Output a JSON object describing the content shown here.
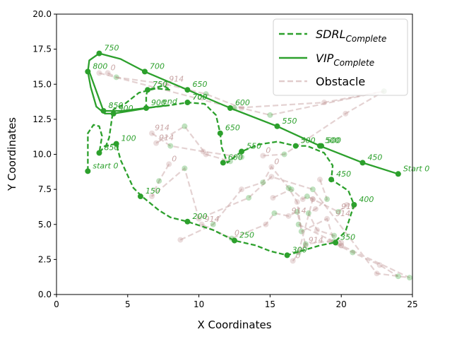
{
  "chart_data": {
    "type": "line",
    "title": "",
    "xlabel": "X Coordinates",
    "ylabel": "Y Coordinates",
    "xlim": [
      0,
      25
    ],
    "ylim": [
      0,
      20
    ],
    "xticks": [
      "0",
      "5",
      "10",
      "15",
      "20",
      "25"
    ],
    "yticks": [
      "0.0",
      "2.5",
      "5.0",
      "7.5",
      "10.0",
      "12.5",
      "15.0",
      "17.5",
      "20.0"
    ],
    "grid": false,
    "legend": {
      "placement": "top-right",
      "entries": [
        {
          "base": "SDRL",
          "sub": "Complete",
          "style": "dashed"
        },
        {
          "base": "VIP",
          "sub": "Complete",
          "style": "solid"
        },
        {
          "base": "Obstacle",
          "sub": "",
          "style": "dashed-faint"
        }
      ]
    },
    "colors": {
      "path": "#2ca02c",
      "obstacle": "#bc8f8f"
    },
    "series": [
      {
        "style": "dashed",
        "path": [
          [
            2.2,
            8.8
          ],
          [
            2.2,
            11.5
          ],
          [
            2.6,
            12.1
          ],
          [
            3.0,
            12.0
          ],
          [
            3.2,
            11.3
          ],
          [
            3.0,
            10.1
          ],
          [
            3.4,
            10.6
          ],
          [
            4.2,
            10.75
          ],
          [
            4.5,
            9.6
          ],
          [
            5.4,
            7.6
          ],
          [
            6.0,
            7.0
          ],
          [
            7.2,
            6.0
          ],
          [
            8.0,
            5.5
          ],
          [
            9.2,
            5.2
          ],
          [
            11.0,
            4.6
          ],
          [
            12.5,
            3.85
          ],
          [
            14.0,
            3.5
          ],
          [
            15.0,
            3.1
          ],
          [
            16.2,
            2.8
          ],
          [
            17.5,
            3.2
          ],
          [
            18.5,
            3.5
          ],
          [
            19.5,
            3.7
          ],
          [
            20.3,
            4.5
          ],
          [
            20.9,
            6.4
          ],
          [
            20.5,
            7.4
          ],
          [
            19.3,
            8.2
          ],
          [
            19.4,
            9.2
          ],
          [
            18.8,
            10.1
          ],
          [
            17.6,
            10.6
          ],
          [
            16.8,
            10.6
          ],
          [
            15.5,
            10.9
          ],
          [
            14.2,
            10.7
          ],
          [
            13.0,
            10.2
          ],
          [
            12.0,
            9.4
          ],
          [
            11.6,
            10.5
          ],
          [
            11.5,
            11.5
          ],
          [
            11.2,
            12.8
          ],
          [
            10.4,
            13.6
          ],
          [
            9.2,
            13.7
          ],
          [
            8.0,
            13.5
          ],
          [
            6.3,
            13.3
          ],
          [
            6.3,
            14.2
          ],
          [
            6.4,
            14.6
          ],
          [
            7.5,
            14.9
          ],
          [
            8.0,
            14.6
          ],
          [
            7.0,
            14.7
          ],
          [
            5.8,
            14.4
          ],
          [
            4.8,
            13.6
          ],
          [
            4.0,
            13.2
          ],
          [
            3.9,
            12.6
          ],
          [
            3.7,
            11.2
          ],
          [
            3.4,
            10.4
          ]
        ],
        "markers": [
          [
            2.2,
            8.8
          ],
          [
            3.0,
            10.1
          ],
          [
            4.2,
            10.75
          ],
          [
            5.9,
            7.0
          ],
          [
            9.2,
            5.2
          ],
          [
            12.5,
            3.85
          ],
          [
            16.2,
            2.8
          ],
          [
            19.6,
            3.7
          ],
          [
            20.9,
            6.4
          ],
          [
            19.3,
            8.2
          ],
          [
            18.6,
            10.6
          ],
          [
            16.8,
            10.6
          ],
          [
            13.0,
            10.2
          ],
          [
            11.7,
            9.4
          ],
          [
            11.5,
            11.5
          ],
          [
            9.2,
            13.7
          ],
          [
            6.3,
            13.3
          ],
          [
            6.4,
            14.6
          ]
        ],
        "labels": [
          {
            "x": 2.2,
            "y": 8.8,
            "text": "start 0"
          },
          {
            "x": 3.0,
            "y": 10.1,
            "text": "850"
          },
          {
            "x": 4.2,
            "y": 10.75,
            "text": "100"
          },
          {
            "x": 5.9,
            "y": 7.0,
            "text": "150"
          },
          {
            "x": 9.2,
            "y": 5.2,
            "text": "200"
          },
          {
            "x": 12.5,
            "y": 3.85,
            "text": "250"
          },
          {
            "x": 16.2,
            "y": 2.8,
            "text": "300"
          },
          {
            "x": 19.6,
            "y": 3.7,
            "text": "350"
          },
          {
            "x": 20.9,
            "y": 6.4,
            "text": "400"
          },
          {
            "x": 19.3,
            "y": 8.2,
            "text": "450"
          },
          {
            "x": 18.6,
            "y": 10.6,
            "text": "500"
          },
          {
            "x": 16.8,
            "y": 10.6,
            "text": "500"
          },
          {
            "x": 13.0,
            "y": 10.2,
            "text": "550"
          },
          {
            "x": 11.7,
            "y": 9.4,
            "text": "600"
          },
          {
            "x": 11.5,
            "y": 11.5,
            "text": "650"
          },
          {
            "x": 9.2,
            "y": 13.7,
            "text": "700"
          },
          {
            "x": 6.3,
            "y": 13.3,
            "text": "900"
          },
          {
            "x": 6.4,
            "y": 14.6,
            "text": "750"
          },
          {
            "x": 7.1,
            "y": 13.4,
            "text": "end"
          }
        ]
      },
      {
        "style": "solid",
        "path": [
          [
            24.0,
            8.6
          ],
          [
            21.5,
            9.4
          ],
          [
            18.5,
            10.6
          ],
          [
            15.5,
            12.0
          ],
          [
            12.2,
            13.3
          ],
          [
            9.2,
            14.6
          ],
          [
            6.2,
            15.9
          ],
          [
            4.5,
            16.8
          ],
          [
            3.0,
            17.2
          ],
          [
            2.3,
            16.7
          ],
          [
            2.2,
            15.9
          ],
          [
            2.4,
            14.8
          ],
          [
            2.8,
            13.4
          ],
          [
            3.4,
            12.9
          ],
          [
            4.0,
            12.9
          ],
          [
            5.2,
            13.1
          ],
          [
            7.0,
            13.4
          ],
          [
            7.9,
            13.5
          ],
          [
            4.6,
            13.1
          ],
          [
            3.3,
            13.1
          ],
          [
            2.3,
            15.9
          ]
        ],
        "markers": [
          [
            24.0,
            8.6
          ],
          [
            21.5,
            9.4
          ],
          [
            18.5,
            10.6
          ],
          [
            15.5,
            12.0
          ],
          [
            12.2,
            13.3
          ],
          [
            9.2,
            14.6
          ],
          [
            6.2,
            15.9
          ],
          [
            3.0,
            17.2
          ],
          [
            2.2,
            15.9
          ],
          [
            3.3,
            13.1
          ],
          [
            4.0,
            12.9
          ]
        ],
        "labels": [
          {
            "x": 24.0,
            "y": 8.6,
            "text": "Start 0"
          },
          {
            "x": 21.5,
            "y": 9.4,
            "text": "450"
          },
          {
            "x": 18.5,
            "y": 10.6,
            "text": "500"
          },
          {
            "x": 15.5,
            "y": 12.0,
            "text": "550"
          },
          {
            "x": 12.2,
            "y": 13.3,
            "text": "600"
          },
          {
            "x": 9.2,
            "y": 14.6,
            "text": "650"
          },
          {
            "x": 6.2,
            "y": 15.9,
            "text": "700"
          },
          {
            "x": 3.0,
            "y": 17.2,
            "text": "750"
          },
          {
            "x": 2.2,
            "y": 15.9,
            "text": "800"
          },
          {
            "x": 3.3,
            "y": 13.1,
            "text": "850"
          },
          {
            "x": 4.0,
            "y": 12.9,
            "text": "900"
          },
          {
            "x": 9.2,
            "y": 13.7,
            "text": "700"
          }
        ]
      }
    ],
    "obstacles": [
      {
        "points": [
          [
            3.6,
            15.8
          ],
          [
            4.2,
            15.5
          ],
          [
            7.7,
            15.0
          ],
          [
            10.5,
            14.3
          ],
          [
            13.0,
            13.3
          ],
          [
            15.0,
            12.8
          ],
          [
            23.0,
            14.5
          ]
        ],
        "labels": [
          {
            "x": 3.6,
            "y": 15.8,
            "text": "0"
          },
          {
            "x": 7.7,
            "y": 15.0,
            "text": "914"
          }
        ]
      },
      {
        "points": [
          [
            3.0,
            15.8
          ],
          [
            12.5,
            13.3
          ],
          [
            18.8,
            13.7
          ],
          [
            23.0,
            14.5
          ],
          [
            20.3,
            12.9
          ],
          [
            16.0,
            10.0
          ],
          [
            14.5,
            9.9
          ]
        ],
        "labels": [
          {
            "x": 14.5,
            "y": 9.9,
            "text": "0"
          }
        ]
      },
      {
        "points": [
          [
            6.7,
            11.5
          ],
          [
            8.0,
            10.6
          ],
          [
            10.3,
            10.2
          ],
          [
            13.0,
            9.8
          ]
        ],
        "labels": [
          {
            "x": 6.7,
            "y": 11.5,
            "text": "914"
          }
        ]
      },
      {
        "points": [
          [
            7.0,
            10.8
          ],
          [
            9.0,
            12.0
          ],
          [
            10.5,
            10.0
          ],
          [
            12.2,
            9.5
          ]
        ],
        "labels": [
          {
            "x": 7.0,
            "y": 10.8,
            "text": "914"
          }
        ]
      },
      {
        "points": [
          [
            7.9,
            9.3
          ],
          [
            7.2,
            8.1
          ],
          [
            6.7,
            7.0
          ],
          [
            9.0,
            9.0
          ],
          [
            10.0,
            5.4
          ],
          [
            13.5,
            6.9
          ],
          [
            15.1,
            8.4
          ],
          [
            18.0,
            7.5
          ],
          [
            22.5,
            1.5
          ],
          [
            24.8,
            1.2
          ],
          [
            20.0,
            3.5
          ],
          [
            17.0,
            5.0
          ]
        ],
        "labels": [
          {
            "x": 7.9,
            "y": 9.3,
            "text": "0"
          }
        ]
      },
      {
        "points": [
          [
            8.7,
            3.9
          ],
          [
            11.0,
            5.0
          ],
          [
            13.0,
            7.5
          ],
          [
            14.5,
            8.0
          ],
          [
            15.1,
            9.1
          ],
          [
            16.3,
            7.6
          ],
          [
            16.9,
            6.6
          ],
          [
            17.2,
            4.5
          ],
          [
            19.0,
            5.4
          ],
          [
            19.5,
            3.8
          ],
          [
            20.0,
            3.5
          ]
        ],
        "labels": [
          {
            "x": 15.1,
            "y": 9.1,
            "text": "0"
          }
        ]
      },
      {
        "points": [
          [
            10.2,
            5.0
          ],
          [
            12.3,
            4.0
          ],
          [
            14.7,
            5.0
          ],
          [
            15.3,
            5.8
          ],
          [
            16.3,
            5.6
          ],
          [
            16.9,
            5.9
          ],
          [
            17.5,
            3.5
          ],
          [
            17.0,
            3.0
          ],
          [
            18.0,
            6.8
          ],
          [
            19.8,
            5.9
          ],
          [
            20.4,
            6.4
          ]
        ],
        "labels": [
          {
            "x": 10.2,
            "y": 5.0,
            "text": "914"
          },
          {
            "x": 12.3,
            "y": 4.0,
            "text": "0"
          },
          {
            "x": 16.3,
            "y": 5.6,
            "text": "914"
          },
          {
            "x": 17.5,
            "y": 3.5,
            "text": "914"
          },
          {
            "x": 19.8,
            "y": 5.9,
            "text": "914"
          },
          {
            "x": 19.4,
            "y": 5.4,
            "text": "914"
          }
        ]
      },
      {
        "points": [
          [
            16.6,
            2.4
          ],
          [
            17.5,
            3.6
          ],
          [
            19.2,
            3.8
          ],
          [
            20.8,
            3.0
          ],
          [
            22.7,
            2.1
          ],
          [
            24.0,
            1.3
          ]
        ],
        "labels": [
          {
            "x": 16.6,
            "y": 2.4,
            "text": "0"
          }
        ]
      },
      {
        "points": [
          [
            18.5,
            8.2
          ],
          [
            19.0,
            6.8
          ],
          [
            18.2,
            6.1
          ],
          [
            17.7,
            5.8
          ],
          [
            18.3,
            4.6
          ],
          [
            19.5,
            4.2
          ],
          [
            20.0,
            3.7
          ]
        ],
        "labels": []
      },
      {
        "points": [
          [
            15.2,
            6.9
          ],
          [
            16.5,
            7.5
          ],
          [
            17.3,
            6.8
          ],
          [
            17.6,
            7.0
          ],
          [
            18.0,
            6.8
          ]
        ],
        "labels": []
      }
    ]
  }
}
